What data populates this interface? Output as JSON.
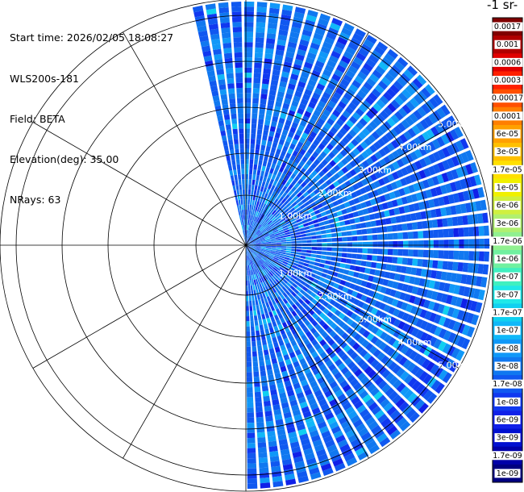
{
  "info": {
    "start_time": "Start time: 2026/02/05 18:08:27",
    "instrument": "WLS200s-181",
    "field": "Field: BETA",
    "elevation": "Elevation(deg): 35.00",
    "nrays": "NRays: 63"
  },
  "colorbar": {
    "title": "-1 sr-",
    "labels": [
      "0.0017",
      "0.001",
      "0.0006",
      "0.0003",
      "0.00017",
      "0.0001",
      "6e-05",
      "3e-05",
      "1.7e-05",
      "1e-05",
      "6e-06",
      "3e-06",
      "1.7e-06",
      "1e-06",
      "6e-07",
      "3e-07",
      "1.7e-07",
      "1e-07",
      "6e-08",
      "3e-08",
      "1.7e-08",
      "1e-08",
      "6e-09",
      "3e-09",
      "1.7e-09",
      "1e-09"
    ],
    "colors": [
      "#800000",
      "#b00000",
      "#e00000",
      "#ff2000",
      "#ff5000",
      "#ff7e00",
      "#ffa000",
      "#ffc000",
      "#ffe000",
      "#f0f000",
      "#d0f040",
      "#b0f070",
      "#90f090",
      "#70f0a0",
      "#40f0c0",
      "#20e8e8",
      "#10d0f0",
      "#10b8f8",
      "#1098f8",
      "#1078f0",
      "#1058f0",
      "#1038f0",
      "#1020e8",
      "#0010d0",
      "#0000a8",
      "#000080"
    ]
  },
  "chart_data": {
    "type": "ppi-polar",
    "field": "BETA",
    "elevation_deg": 35.0,
    "nrays": 63,
    "azimuth_range_deg": [
      -13,
      180
    ],
    "max_range_km": 5.3,
    "range_ring_spacing_km": 1.0,
    "range_ring_labels": [
      "1.00km",
      "2.00km",
      "3.00km",
      "4.00km",
      "5.00km"
    ],
    "spoke_spacing_deg": 30,
    "color_scale": "log",
    "value_range": [
      1e-09,
      0.0017
    ],
    "dominant_value_range": [
      6e-09,
      3e-08
    ],
    "grid": true
  }
}
